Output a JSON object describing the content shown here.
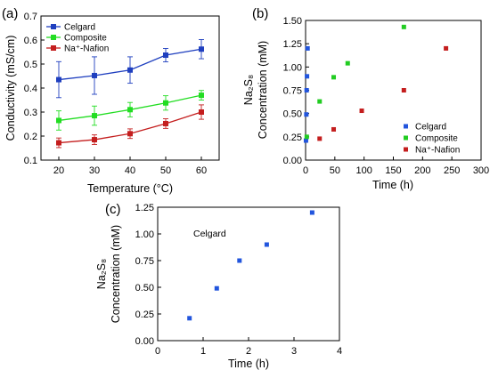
{
  "chart_data": [
    {
      "panel": "(a)",
      "type": "line",
      "x": [
        20,
        30,
        40,
        50,
        60
      ],
      "xlabel": "Temperature (°C)",
      "ylabel": "Conductivity (mS/cm)",
      "xlim": [
        15,
        65
      ],
      "ylim": [
        0.1,
        0.7
      ],
      "xticks": [
        20,
        30,
        40,
        50,
        60
      ],
      "yticks": [
        0.1,
        0.2,
        0.3,
        0.4,
        0.5,
        0.6,
        0.7
      ],
      "legend_position": "top-left",
      "series": [
        {
          "name": "Celgard",
          "color": "#1f3fbf",
          "values": [
            0.435,
            0.452,
            0.475,
            0.537,
            0.562
          ],
          "errors": [
            0.075,
            0.078,
            0.055,
            0.028,
            0.04
          ]
        },
        {
          "name": "Composite",
          "color": "#22dd22",
          "values": [
            0.265,
            0.285,
            0.31,
            0.338,
            0.37
          ],
          "errors": [
            0.04,
            0.04,
            0.03,
            0.03,
            0.02
          ]
        },
        {
          "name": "Na⁺-Nafion",
          "color": "#c41e1e",
          "values": [
            0.172,
            0.185,
            0.21,
            0.252,
            0.3
          ],
          "errors": [
            0.02,
            0.02,
            0.02,
            0.02,
            0.03
          ]
        }
      ]
    },
    {
      "panel": "(b)",
      "type": "scatter",
      "xlabel": "Time (h)",
      "ylabel_line1": "Na₂S₈",
      "ylabel_line2": "Concentration (mM)",
      "xlim": [
        0,
        300
      ],
      "ylim": [
        0.0,
        1.5
      ],
      "xticks": [
        0,
        50,
        100,
        150,
        200,
        250,
        300
      ],
      "yticks": [
        0.0,
        0.25,
        0.5,
        0.75,
        1.0,
        1.25,
        1.5
      ],
      "legend_position": "bottom-right",
      "series": [
        {
          "name": "Celgard",
          "color": "#2255dd",
          "x": [
            0.7,
            1.3,
            1.8,
            2.4,
            3.4
          ],
          "y": [
            0.21,
            0.49,
            0.75,
            0.9,
            1.2
          ]
        },
        {
          "name": "Composite",
          "color": "#22cc22",
          "x": [
            2,
            24,
            48,
            72,
            168
          ],
          "y": [
            0.25,
            0.63,
            0.89,
            1.04,
            1.43
          ]
        },
        {
          "name": "Na⁺-Nafion",
          "color": "#c41e1e",
          "x": [
            24,
            48,
            96,
            168,
            240
          ],
          "y": [
            0.23,
            0.33,
            0.53,
            0.75,
            1.2
          ]
        }
      ]
    },
    {
      "panel": "(c)",
      "type": "scatter",
      "xlabel": "Time (h)",
      "ylabel_line1": "Na₂S₈",
      "ylabel_line2": "Concentration (mM)",
      "xlim": [
        0,
        4
      ],
      "ylim": [
        0.0,
        1.25
      ],
      "xticks": [
        0,
        1,
        2,
        3,
        4
      ],
      "yticks": [
        0.0,
        0.25,
        0.5,
        0.75,
        1.0,
        1.25
      ],
      "annotation": "Celgard",
      "series": [
        {
          "color": "#2255dd",
          "x": [
            0.7,
            1.3,
            1.8,
            2.4,
            3.4
          ],
          "y": [
            0.21,
            0.49,
            0.75,
            0.9,
            1.2
          ]
        }
      ]
    }
  ]
}
